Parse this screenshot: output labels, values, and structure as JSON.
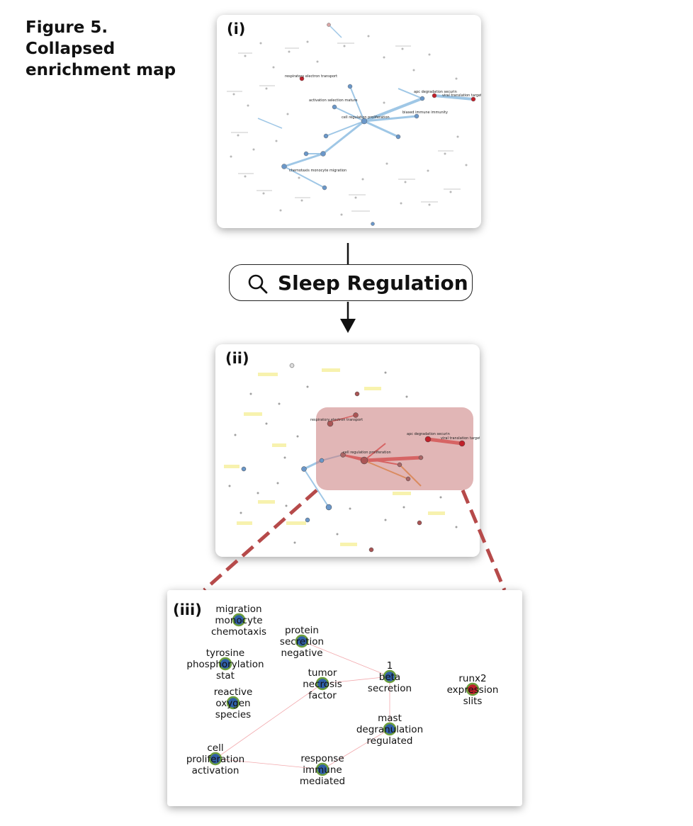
{
  "figure": {
    "title": "Figure 5. Collapsed enrichment map"
  },
  "panels": {
    "i": {
      "label": "(i)",
      "visible_labels": [
        "respiratory electron transport",
        "apc degradation securin",
        "viral translation targeting",
        "cell regulation proliferation",
        "activation selection mature",
        "biased immune immunity",
        "chemotaxis monocyte migration"
      ]
    },
    "ii": {
      "label": "(ii)",
      "visible_labels": [
        "respiratory electron transport",
        "apc degradation securin",
        "viral translation targeting",
        "cell regulation proliferation"
      ]
    },
    "iii": {
      "label": "(iii)",
      "nodes": [
        {
          "id": "n1",
          "lines": [
            "migration",
            "monocyte",
            "chemotaxis"
          ],
          "color": "#2f5fa8"
        },
        {
          "id": "n2",
          "lines": [
            "protein",
            "secretion",
            "negative"
          ],
          "color": "#2f5fa8"
        },
        {
          "id": "n3",
          "lines": [
            "tyrosine",
            "phosphorylation",
            "stat"
          ],
          "color": "#2f5fa8"
        },
        {
          "id": "n4",
          "lines": [
            "1",
            "beta",
            "secretion"
          ],
          "color": "#2f5fa8"
        },
        {
          "id": "n5",
          "lines": [
            "tumor",
            "necrosis",
            "factor"
          ],
          "color": "#2f5fa8"
        },
        {
          "id": "n6",
          "lines": [
            "runx2",
            "expression",
            "slits"
          ],
          "color": "#c0202a"
        },
        {
          "id": "n7",
          "lines": [
            "reactive",
            "oxygen",
            "species"
          ],
          "color": "#2f5fa8"
        },
        {
          "id": "n8",
          "lines": [
            "mast",
            "degranulation",
            "regulated"
          ],
          "color": "#2f5fa8"
        },
        {
          "id": "n9",
          "lines": [
            "cell",
            "proliferation",
            "activation"
          ],
          "color": "#2f5fa8"
        },
        {
          "id": "n10",
          "lines": [
            "response",
            "immune",
            "mediated"
          ],
          "color": "#2f5fa8"
        }
      ]
    }
  },
  "search": {
    "query": "Sleep Regulation"
  },
  "colors": {
    "node_blue": "#2f5fa8",
    "node_red": "#c0202a",
    "node_ring": "#6c9e3c",
    "highlight_box": "#c97a7a",
    "connector_dash": "#b64a4a",
    "edge_pink": "#f2a9ad"
  }
}
